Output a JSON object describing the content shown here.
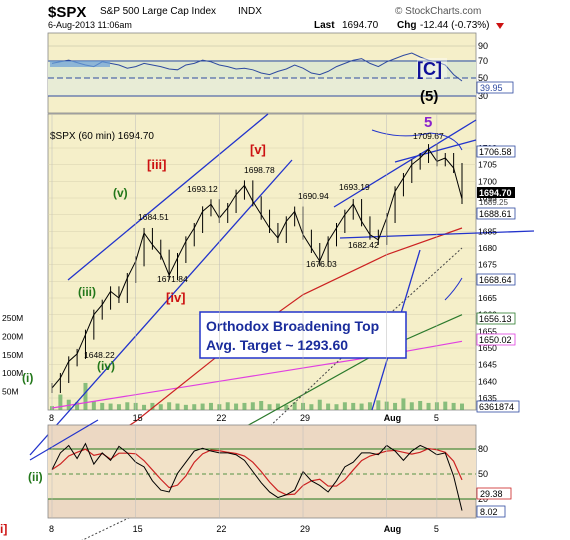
{
  "header": {
    "symbol": "$SPX",
    "name": "S&P 500 Large Cap Index",
    "exchange": "INDX",
    "datetime": "6-Aug-2013 11:06am",
    "last_label": "Last",
    "last": "1694.70",
    "chg_label": "Chg",
    "chg": "-12.44 (-0.73%)",
    "watermark": "© StockCharts.com"
  },
  "colors": {
    "panel_bg": "#f5efc9",
    "rsi_bg": "#ecd8c3",
    "bottom_bg": "#f2dfc8",
    "wave_red": "#cc1111",
    "wave_green": "#22771a",
    "wave_blue": "#101099",
    "wave_purple": "#8a22cc",
    "price_line": "#000000",
    "ma_red": "#cc2222",
    "ma_green": "#2c7a2c",
    "ma_magenta": "#e040e0",
    "trendline": "#2233cc",
    "volume": "#5aa85a"
  },
  "top_indicator": {
    "tick_labels": [
      "90",
      "70",
      "50",
      "30"
    ],
    "value": "39.95",
    "label_C": "[C]",
    "label_5paren": "(5)"
  },
  "main": {
    "legend": "$SPX (60 min) 1694.70",
    "price_ticks": [
      "1710",
      "1705",
      "1700",
      "1695",
      "1690",
      "1685",
      "1680",
      "1675",
      "1670",
      "1665",
      "1660",
      "1655",
      "1650",
      "1645",
      "1640",
      "1635"
    ],
    "tags": {
      "t1": "1706.58",
      "t2": "1694.70",
      "t3": "1688.61",
      "t4": "1689.25",
      "t5": "1668.64",
      "t6": "1656.13",
      "t7": "1650.02",
      "t8": "6361874"
    },
    "volume_ticks": [
      "250M",
      "200M",
      "150M",
      "100M",
      "50M"
    ],
    "x_ticks": [
      "8",
      "15",
      "22",
      "29",
      "Aug",
      "5"
    ],
    "annotation_line1": "Orthodox Broadening Top",
    "annotation_line2": "Avg. Target ~ 1293.60",
    "price_labels": {
      "p1": "1648.22",
      "p2": "1671.84",
      "p3": "1684.51",
      "p4": "1693.12",
      "p5": "1698.78",
      "p6": "1690.94",
      "p7": "1676.03",
      "p8": "1693.19",
      "p9": "1682.42",
      "p10": "1709.67"
    },
    "waves": {
      "iii_red": "[iii]",
      "v_red": "[v]",
      "iv_red": "[iv]",
      "v_green": "(v)",
      "iii_green": "(iii)",
      "iv_green": "(iv)",
      "i_green": "(i)",
      "five_purple": "5"
    }
  },
  "rsi": {
    "ticks": [
      "80",
      "50",
      "20"
    ],
    "value1": "29.38",
    "value2": "8.02",
    "wave_ii": "(ii)",
    "wave_i_red": "i]",
    "x_ticks": [
      "8",
      "15",
      "22",
      "29",
      "Aug",
      "5"
    ]
  },
  "chart_data": {
    "type": "line",
    "title": "$SPX S&P 500 Large Cap Index INDX",
    "series": [
      {
        "name": "$SPX (60 min)",
        "points": [
          [
            0,
            1638
          ],
          [
            1,
            1641
          ],
          [
            2,
            1646
          ],
          [
            3,
            1648.22
          ],
          [
            4,
            1654
          ],
          [
            5,
            1660
          ],
          [
            6,
            1663
          ],
          [
            7,
            1667
          ],
          [
            8,
            1665
          ],
          [
            9,
            1671
          ],
          [
            10,
            1676
          ],
          [
            11,
            1684.51
          ],
          [
            12,
            1681
          ],
          [
            13,
            1678
          ],
          [
            14,
            1671.84
          ],
          [
            15,
            1677
          ],
          [
            16,
            1682
          ],
          [
            17,
            1686
          ],
          [
            18,
            1691
          ],
          [
            19,
            1693.12
          ],
          [
            20,
            1689
          ],
          [
            21,
            1692
          ],
          [
            22,
            1696
          ],
          [
            23,
            1698.78
          ],
          [
            24,
            1694
          ],
          [
            25,
            1690
          ],
          [
            26,
            1686
          ],
          [
            27,
            1683
          ],
          [
            28,
            1688
          ],
          [
            29,
            1690.94
          ],
          [
            30,
            1684
          ],
          [
            31,
            1680
          ],
          [
            32,
            1676.03
          ],
          [
            33,
            1682
          ],
          [
            34,
            1686
          ],
          [
            35,
            1690
          ],
          [
            36,
            1693.19
          ],
          [
            37,
            1688
          ],
          [
            38,
            1684
          ],
          [
            39,
            1682.42
          ],
          [
            40,
            1689
          ],
          [
            41,
            1697
          ],
          [
            42,
            1701
          ],
          [
            43,
            1705
          ],
          [
            44,
            1707
          ],
          [
            45,
            1709.67
          ],
          [
            46,
            1706
          ],
          [
            47,
            1707
          ],
          [
            48,
            1704
          ],
          [
            49,
            1694.7
          ]
        ]
      }
    ],
    "ylim": [
      1630,
      1715
    ],
    "ma": {
      "red": [
        [
          0,
          1612
        ],
        [
          10,
          1628
        ],
        [
          20,
          1648
        ],
        [
          30,
          1666
        ],
        [
          40,
          1678
        ],
        [
          49,
          1686
        ]
      ],
      "dotted": [
        [
          0,
          1588
        ],
        [
          20,
          1612
        ],
        [
          35,
          1648
        ],
        [
          49,
          1680
        ]
      ],
      "green": [
        [
          0,
          1608
        ],
        [
          20,
          1622
        ],
        [
          40,
          1650
        ],
        [
          49,
          1660
        ]
      ],
      "magenta": [
        [
          0,
          1632
        ],
        [
          20,
          1640
        ],
        [
          40,
          1648
        ],
        [
          49,
          1652
        ]
      ]
    },
    "volume": [
      30,
      120,
      80,
      60,
      210,
      70,
      55,
      50,
      45,
      60,
      55,
      40,
      55,
      45,
      60,
      50,
      40,
      45,
      50,
      55,
      45,
      60,
      50,
      55,
      60,
      70,
      45,
      50,
      40,
      60,
      55,
      45,
      80,
      50,
      45,
      60,
      55,
      50,
      60,
      75,
      65,
      55,
      90,
      60,
      70,
      55,
      60,
      65,
      55,
      50
    ],
    "rsi_series": [
      52,
      70,
      78,
      64,
      80,
      58,
      70,
      62,
      77,
      70,
      60,
      55,
      40,
      30,
      28,
      48,
      60,
      72,
      75,
      72,
      70,
      70,
      68,
      62,
      50,
      38,
      28,
      22,
      25,
      30,
      50,
      40,
      35,
      28,
      40,
      55,
      60,
      70,
      70,
      68,
      78,
      72,
      62,
      72,
      78,
      74,
      68,
      70,
      45,
      8
    ],
    "rsi_ylim": [
      0,
      100
    ]
  }
}
